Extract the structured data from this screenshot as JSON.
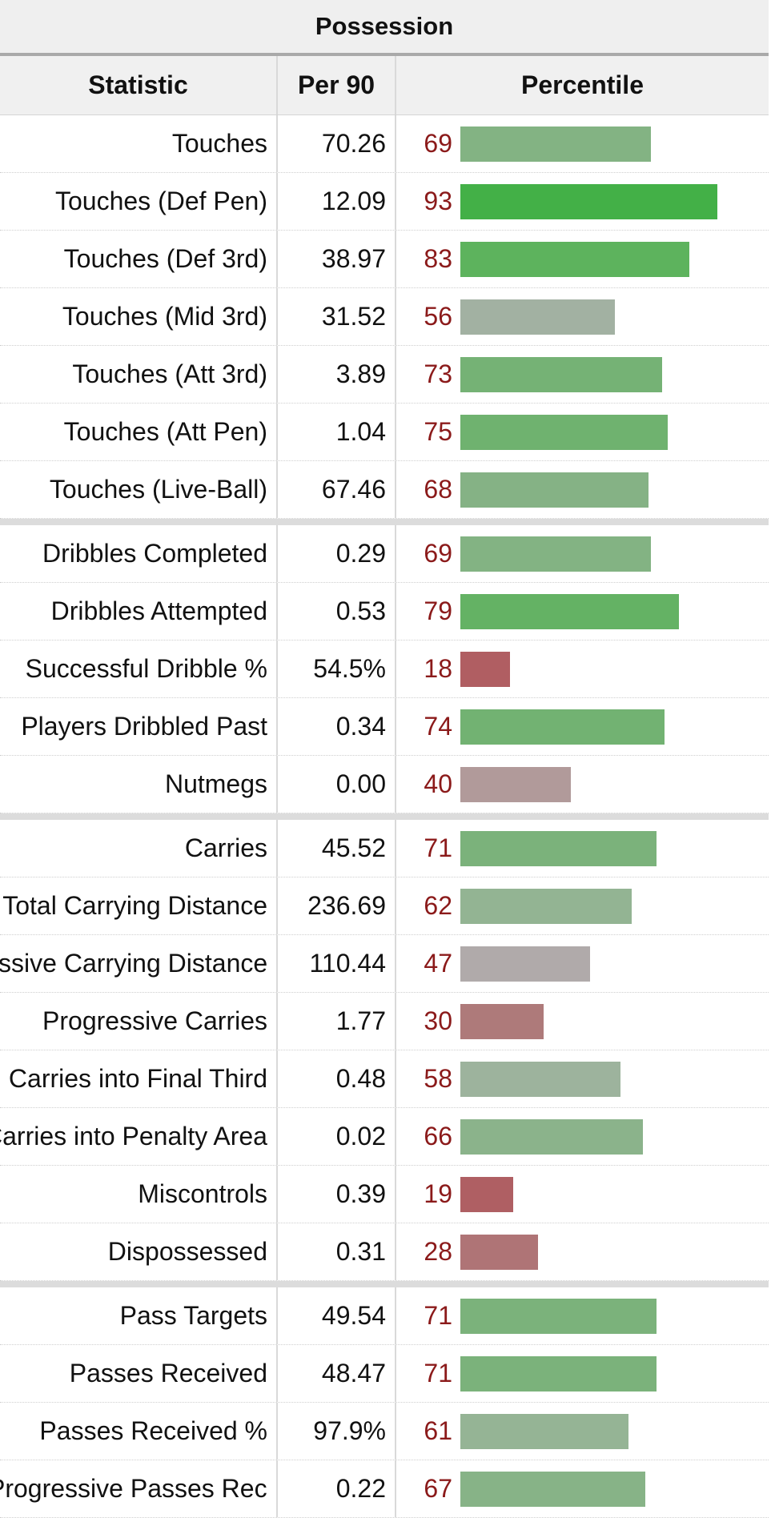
{
  "table": {
    "title": "Possession",
    "headers": {
      "statistic": "Statistic",
      "per90": "Per 90",
      "percentile": "Percentile"
    },
    "groups": [
      [
        {
          "stat": "Touches",
          "per90": "70.26",
          "pct": 69,
          "color": "#83b383"
        },
        {
          "stat": "Touches (Def Pen)",
          "per90": "12.09",
          "pct": 93,
          "color": "#43b047"
        },
        {
          "stat": "Touches (Def 3rd)",
          "per90": "38.97",
          "pct": 83,
          "color": "#5db35d"
        },
        {
          "stat": "Touches (Mid 3rd)",
          "per90": "31.52",
          "pct": 56,
          "color": "#a2b1a2"
        },
        {
          "stat": "Touches (Att 3rd)",
          "per90": "3.89",
          "pct": 73,
          "color": "#75b275"
        },
        {
          "stat": "Touches (Att Pen)",
          "per90": "1.04",
          "pct": 75,
          "color": "#6fb26f"
        },
        {
          "stat": "Touches (Live-Ball)",
          "per90": "67.46",
          "pct": 68,
          "color": "#85b285"
        }
      ],
      [
        {
          "stat": "Dribbles Completed",
          "per90": "0.29",
          "pct": 69,
          "color": "#83b383"
        },
        {
          "stat": "Dribbles Attempted",
          "per90": "0.53",
          "pct": 79,
          "color": "#64b264"
        },
        {
          "stat": "Successful Dribble %",
          "per90": "54.5%",
          "pct": 18,
          "color": "#b05e62"
        },
        {
          "stat": "Players Dribbled Past",
          "per90": "0.34",
          "pct": 74,
          "color": "#72b272"
        },
        {
          "stat": "Nutmegs",
          "per90": "0.00",
          "pct": 40,
          "color": "#b19a9a"
        }
      ],
      [
        {
          "stat": "Carries",
          "per90": "45.52",
          "pct": 71,
          "color": "#7bb27b"
        },
        {
          "stat": "Total Carrying Distance",
          "per90": "236.69",
          "pct": 62,
          "color": "#93b493"
        },
        {
          "stat": "Progressive Carrying Distance",
          "per90": "110.44",
          "pct": 47,
          "color": "#b0aaaa"
        },
        {
          "stat": "Progressive Carries",
          "per90": "1.77",
          "pct": 30,
          "color": "#ae7a7a"
        },
        {
          "stat": "Carries into Final Third",
          "per90": "0.48",
          "pct": 58,
          "color": "#9db39d"
        },
        {
          "stat": "Carries into Penalty Area",
          "per90": "0.02",
          "pct": 66,
          "color": "#8bb38b"
        },
        {
          "stat": "Miscontrols",
          "per90": "0.39",
          "pct": 19,
          "color": "#af5f63"
        },
        {
          "stat": "Dispossessed",
          "per90": "0.31",
          "pct": 28,
          "color": "#af7476"
        }
      ],
      [
        {
          "stat": "Pass Targets",
          "per90": "49.54",
          "pct": 71,
          "color": "#7bb27b"
        },
        {
          "stat": "Passes Received",
          "per90": "48.47",
          "pct": 71,
          "color": "#7bb27b"
        },
        {
          "stat": "Passes Received %",
          "per90": "97.9%",
          "pct": 61,
          "color": "#95b495"
        },
        {
          "stat": "Progressive Passes Rec",
          "per90": "0.22",
          "pct": 67,
          "color": "#87b387"
        }
      ]
    ]
  }
}
